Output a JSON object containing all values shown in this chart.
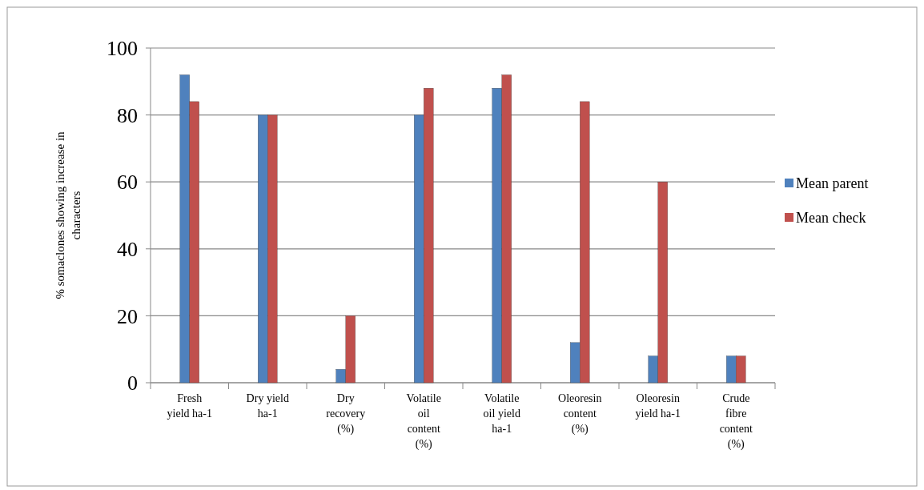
{
  "chart_data": {
    "type": "bar",
    "ylabel": "% somaclones showing increase in characters",
    "categories": [
      "Fresh yield ha-1",
      "Dry yield ha-1",
      "Dry recovery (%)",
      "Volatile oil content (%)",
      "Volatile oil yield ha-1",
      "Oleoresin content (%)",
      "Oleoresin yield ha-1",
      "Crude fibre content (%)"
    ],
    "series": [
      {
        "name": "Mean parent",
        "color": "#4f81bd",
        "values": [
          92,
          80,
          4,
          80,
          88,
          12,
          8,
          8
        ]
      },
      {
        "name": "Mean check",
        "color": "#c0504d",
        "values": [
          84,
          80,
          20,
          88,
          92,
          84,
          60,
          8
        ]
      }
    ],
    "ylim": [
      0,
      100
    ],
    "yticks": [
      0,
      20,
      40,
      60,
      80,
      100
    ],
    "grid": "y",
    "legend": "right"
  }
}
